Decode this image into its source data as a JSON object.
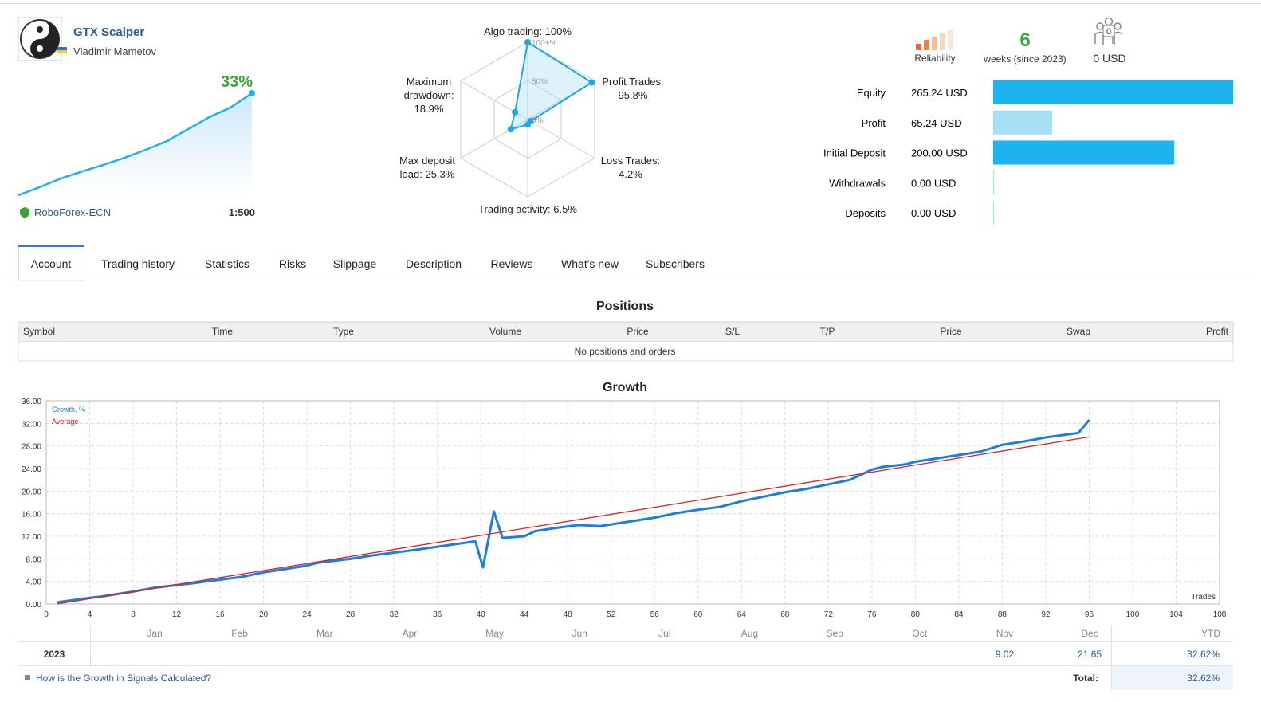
{
  "header": {
    "name": "GTX Scalper",
    "author": "Vladimir Mametov",
    "growth": "33%",
    "broker": "RoboForex-ECN",
    "leverage": "1:500",
    "sparkline": [
      0,
      2.6,
      5.4,
      7.7,
      9.8,
      12.1,
      14.7,
      17.5,
      21.4,
      25.3,
      28.4,
      33
    ]
  },
  "radar": {
    "axes": [
      {
        "label": "Algo trading:",
        "value": 100,
        "value_label": "100%"
      },
      {
        "label": "Profit Trades:",
        "value": 95.8,
        "value_label": "95.8%"
      },
      {
        "label": "Loss Trades:",
        "value": 4.2,
        "value_label": "4.2%"
      },
      {
        "label": "Trading activity:",
        "value": 6.5,
        "value_label": "6.5%"
      },
      {
        "label": "Max deposit load:",
        "value": 25.3,
        "value_label": "25.3%"
      },
      {
        "label": "Maximum drawdown:",
        "value": 18.9,
        "value_label": "18.9%"
      }
    ],
    "ticks": [
      {
        "value": 100,
        "label": "100+%"
      },
      {
        "value": 50,
        "label": "50%"
      },
      {
        "value": 0,
        "label": "0%"
      }
    ]
  },
  "stats": {
    "reliability": "Reliability",
    "weeks": "6",
    "weeks_label": "weeks (since 2023)",
    "subscribers": "0",
    "funds": "0 USD"
  },
  "balances": [
    {
      "label": "Equity",
      "value": 265.24,
      "value_label": "265.24 USD",
      "color": "#1db3ef"
    },
    {
      "label": "Profit",
      "value": 65.24,
      "value_label": "65.24 USD",
      "color": "#a6dff6"
    },
    {
      "label": "Initial Deposit",
      "value": 200,
      "value_label": "200.00 USD",
      "color": "#1db3ef"
    },
    {
      "label": "Withdrawals",
      "value": 0,
      "value_label": "0.00 USD",
      "color": "#a6dff6"
    },
    {
      "label": "Deposits",
      "value": 0,
      "value_label": "0.00 USD",
      "color": "#a6dff6"
    }
  ],
  "tabs": [
    "Account",
    "Trading history",
    "Statistics",
    "Risks",
    "Slippage",
    "Description",
    "Reviews",
    "What's new",
    "Subscribers"
  ],
  "positions": {
    "title": "Positions",
    "columns": [
      "Symbol",
      "Time",
      "Type",
      "Volume",
      "Price",
      "S/L",
      "T/P",
      "Price",
      "Swap",
      "Profit"
    ],
    "empty": "No positions and orders"
  },
  "chart_data": {
    "type": "line",
    "title": "Growth",
    "x_label": "Trades",
    "xlim": [
      0,
      108
    ],
    "xticks": [
      0,
      4,
      8,
      12,
      16,
      20,
      24,
      28,
      32,
      36,
      40,
      44,
      48,
      52,
      56,
      60,
      64,
      68,
      72,
      76,
      80,
      84,
      88,
      92,
      96,
      100,
      104,
      108
    ],
    "ylim": [
      0,
      36
    ],
    "yticks": [
      {
        "value": 0,
        "label": "0.00"
      },
      {
        "value": 4,
        "label": "4.00"
      },
      {
        "value": 8,
        "label": "8.00"
      },
      {
        "value": 12,
        "label": "12.00"
      },
      {
        "value": 16,
        "label": "16.00"
      },
      {
        "value": 20,
        "label": "20.00"
      },
      {
        "value": 24,
        "label": "24.00"
      },
      {
        "value": 28,
        "label": "28.00"
      },
      {
        "value": 32,
        "label": "32.00"
      },
      {
        "value": 36,
        "label": "36.00"
      }
    ],
    "grid": true,
    "series": [
      {
        "name": "Growth, %",
        "color": "#1a7fe0",
        "x": [
          1,
          4,
          5,
          8,
          10,
          14,
          18,
          20,
          24,
          25,
          28,
          30,
          34,
          39.5,
          40.2,
          41.2,
          42,
          44,
          45,
          47,
          49,
          51,
          53,
          56,
          58,
          60,
          62,
          64,
          68,
          70,
          72,
          74,
          76,
          77,
          79,
          80,
          84,
          86,
          88,
          90,
          92,
          95,
          96
        ],
        "values": [
          0.3,
          1.1,
          1.3,
          2.2,
          2.9,
          3.8,
          4.8,
          5.6,
          6.8,
          7.3,
          8.0,
          8.6,
          9.6,
          11.1,
          6.5,
          16.4,
          11.7,
          12.0,
          12.9,
          13.5,
          14.0,
          13.8,
          14.4,
          15.3,
          16.1,
          16.7,
          17.2,
          18.2,
          19.8,
          20.4,
          21.2,
          22.0,
          23.8,
          24.3,
          24.7,
          25.2,
          26.4,
          27.0,
          28.2,
          28.8,
          29.5,
          30.3,
          32.6
        ]
      },
      {
        "name": "Average",
        "color": "#e02020",
        "x": [
          1,
          96
        ],
        "values": [
          0,
          29.6
        ]
      }
    ]
  },
  "yearly": {
    "months": [
      "Jan",
      "Feb",
      "Mar",
      "Apr",
      "May",
      "Jun",
      "Jul",
      "Aug",
      "Sep",
      "Oct",
      "Nov",
      "Dec"
    ],
    "ytd_header": "YTD",
    "year": "2023",
    "values": [
      null,
      null,
      null,
      null,
      null,
      null,
      null,
      null,
      null,
      null,
      9.02,
      21.65
    ],
    "ytd": {
      "value": 32.62,
      "label": "32.62%"
    },
    "total_label": "Total:",
    "total": {
      "value": 32.62,
      "label": "32.62%"
    },
    "link": "How is the Growth in Signals Calculated?"
  }
}
